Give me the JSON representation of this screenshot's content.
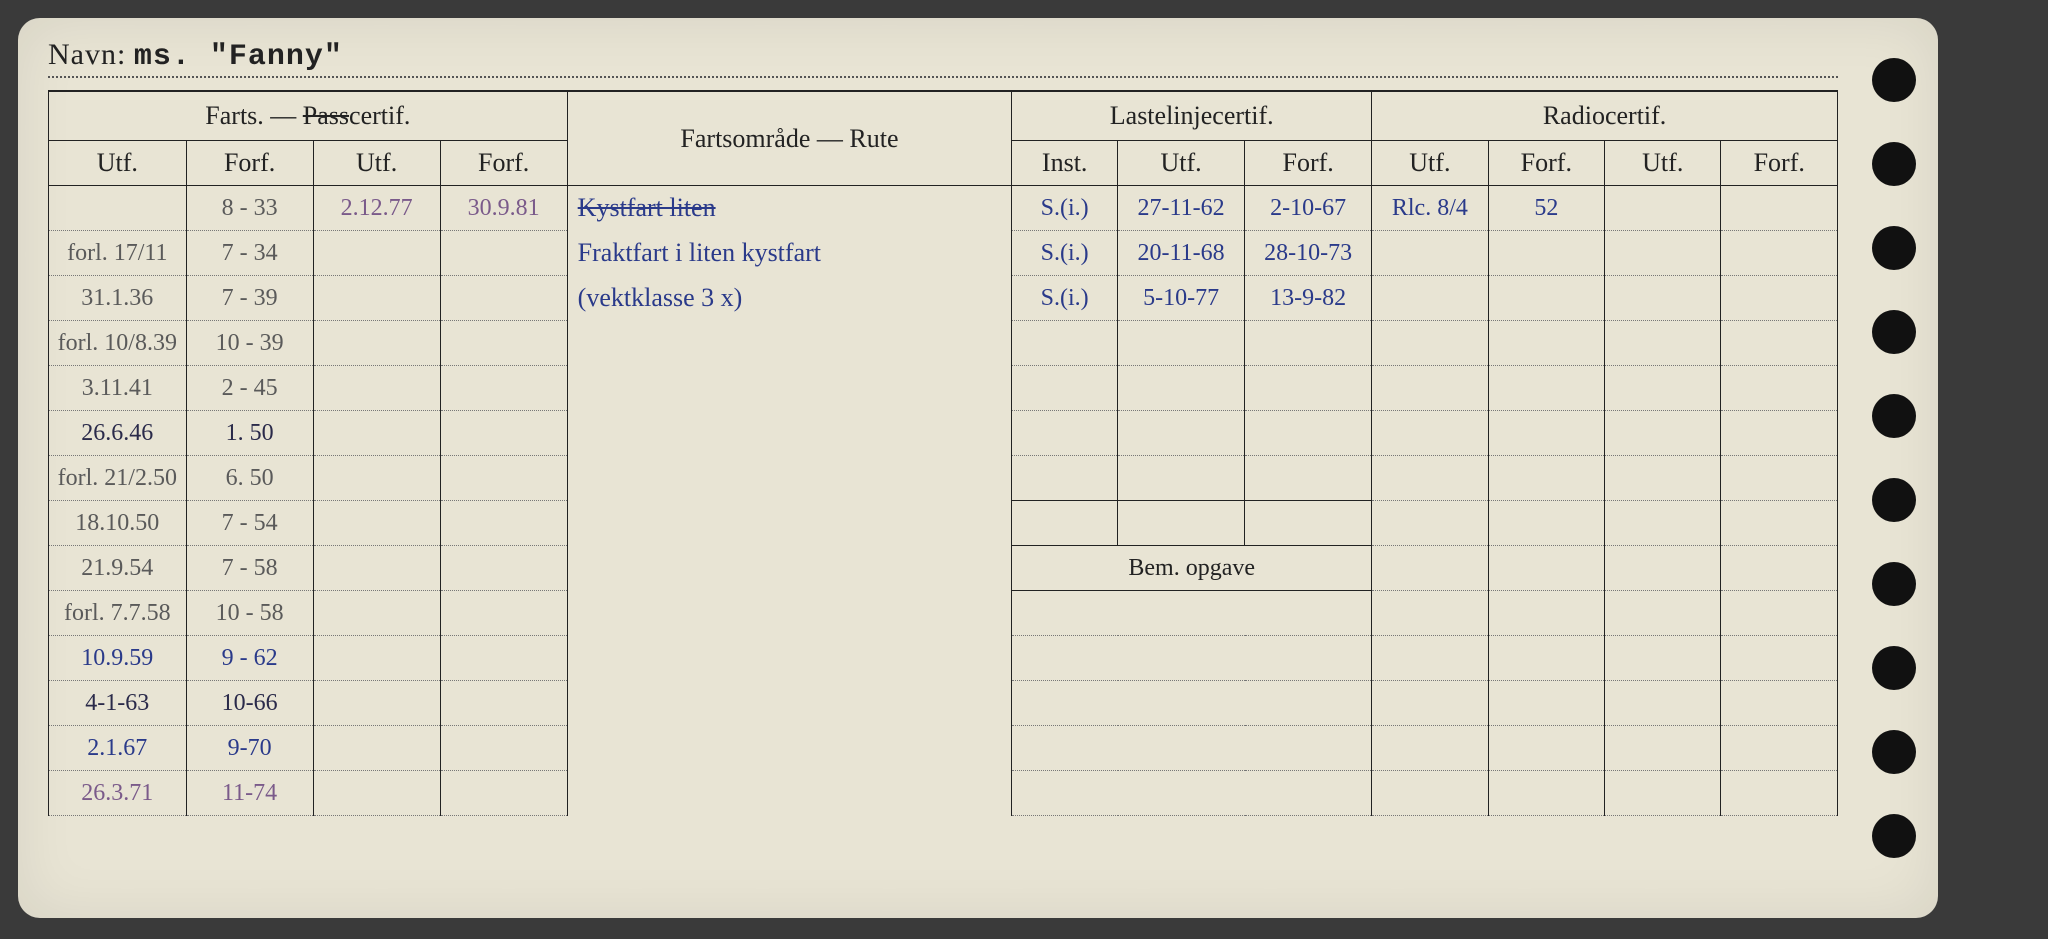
{
  "colors": {
    "paper": "#e8e4d4",
    "ink": "#222222",
    "hole": "#111111",
    "hand_blue": "#2a3a8a",
    "hand_gray": "#5a5a5a",
    "hand_pen": "#7a5a8a"
  },
  "navn": {
    "label": "Navn:",
    "value": "ms. \"Fanny\""
  },
  "headers": {
    "farts_pass": "Farts. — Passcertif.",
    "fartsomrade": "Fartsområde — Rute",
    "lastelinje": "Lastelinjecertif.",
    "radio": "Radiocertif.",
    "utf": "Utf.",
    "forf": "Forf.",
    "inst": "Inst.",
    "bem": "Bem. opgave"
  },
  "farts": [
    {
      "utf": "",
      "forf": "8 - 33",
      "utf2": "2.12.77",
      "forf2": "30.9.81"
    },
    {
      "utf": "forl. 17/11",
      "forf": "7 - 34",
      "utf2": "",
      "forf2": ""
    },
    {
      "utf": "31.1.36",
      "forf": "7 - 39",
      "utf2": "",
      "forf2": ""
    },
    {
      "utf": "forl. 10/8.39",
      "forf": "10 - 39",
      "utf2": "",
      "forf2": ""
    },
    {
      "utf": "3.11.41",
      "forf": "2 - 45",
      "utf2": "",
      "forf2": ""
    },
    {
      "utf": "26.6.46",
      "forf": "1. 50",
      "utf2": "",
      "forf2": ""
    },
    {
      "utf": "forl. 21/2.50",
      "forf": "6. 50",
      "utf2": "",
      "forf2": ""
    },
    {
      "utf": "18.10.50",
      "forf": "7 - 54",
      "utf2": "",
      "forf2": ""
    },
    {
      "utf": "21.9.54",
      "forf": "7 - 58",
      "utf2": "",
      "forf2": ""
    },
    {
      "utf": "forl. 7.7.58",
      "forf": "10 - 58",
      "utf2": "",
      "forf2": ""
    },
    {
      "utf": "10.9.59",
      "forf": "9 - 62",
      "utf2": "",
      "forf2": ""
    },
    {
      "utf": "4-1-63",
      "forf": "10-66",
      "utf2": "",
      "forf2": ""
    },
    {
      "utf": "2.1.67",
      "forf": "9-70",
      "utf2": "",
      "forf2": ""
    },
    {
      "utf": "26.3.71",
      "forf": "11-74",
      "utf2": "",
      "forf2": ""
    }
  ],
  "route": {
    "line1": "Kystfart liten",
    "line2": "Fraktfart i liten kystfart",
    "line3": "(vektklasse 3 x)"
  },
  "laste": [
    {
      "inst": "S.(i.)",
      "utf": "27-11-62",
      "forf": "2-10-67"
    },
    {
      "inst": "S.(i.)",
      "utf": "20-11-68",
      "forf": "28-10-73"
    },
    {
      "inst": "S.(i.)",
      "utf": "5-10-77",
      "forf": "13-9-82"
    }
  ],
  "radio": [
    {
      "utf": "Rlc. 8/4",
      "forf": "52",
      "utf2": "",
      "forf2": ""
    }
  ]
}
